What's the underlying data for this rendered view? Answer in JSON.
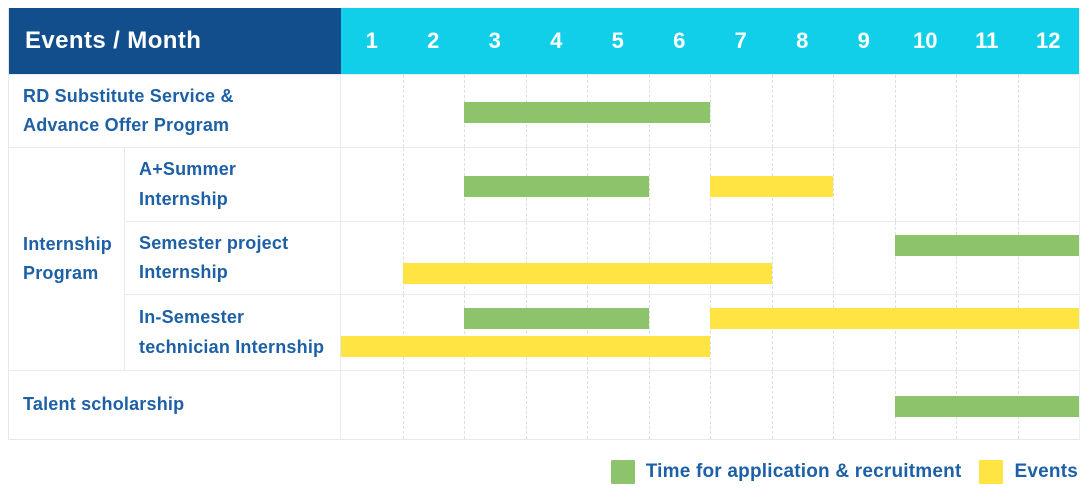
{
  "header": {
    "title": "Events / Month"
  },
  "colors": {
    "header_navy": "#114E8B",
    "header_cyan": "#12CFE9",
    "label_text_blue": "#1D60A6",
    "application": "#8CC36B",
    "event": "#FFE444"
  },
  "chart_data": {
    "type": "gantt",
    "title": "Events / Month",
    "axis": "months of year, 1 through 12",
    "months": [
      "1",
      "2",
      "3",
      "4",
      "5",
      "6",
      "7",
      "8",
      "9",
      "10",
      "11",
      "12"
    ],
    "grid": "dashed vertical month separators, solid row separators",
    "colors": {
      "application": "#8CC36B",
      "event": "#FFE444"
    },
    "bar_unit_note": "start/end are month-axis units 0-12; start 2 = beginning of month 3",
    "rows": [
      {
        "label": "RD Substitute Service &\nAdvance Offer Program",
        "bars": [
          {
            "type": "application",
            "start": 2,
            "end": 6,
            "months_covered": "3-6",
            "lane": "center"
          }
        ]
      },
      {
        "group": "Internship\nProgram",
        "label": "A+Summer\nInternship",
        "bars": [
          {
            "type": "application",
            "start": 2,
            "end": 5,
            "months_covered": "3-5",
            "lane": "center"
          },
          {
            "type": "event",
            "start": 6,
            "end": 8,
            "months_covered": "7-8",
            "lane": "center"
          }
        ]
      },
      {
        "group": "Internship\nProgram",
        "label": "Semester project\nInternship",
        "bars": [
          {
            "type": "application",
            "start": 9,
            "end": 12,
            "months_covered": "10-12",
            "lane": "top"
          },
          {
            "type": "event",
            "start": 1,
            "end": 7,
            "months_covered": "2-7",
            "lane": "bottom"
          }
        ]
      },
      {
        "group": "Internship\nProgram",
        "label": "In-Semester\ntechnician Internship",
        "bars": [
          {
            "type": "application",
            "start": 2,
            "end": 5,
            "months_covered": "3-5",
            "lane": "top"
          },
          {
            "type": "event",
            "start": 6,
            "end": 12,
            "months_covered": "7-12",
            "lane": "top"
          },
          {
            "type": "event",
            "start": 0,
            "end": 6,
            "months_covered": "1-6",
            "lane": "bottom"
          }
        ]
      },
      {
        "label": "Talent scholarship",
        "bars": [
          {
            "type": "application",
            "start": 9,
            "end": 12,
            "months_covered": "10-12",
            "lane": "center"
          }
        ]
      }
    ],
    "legend": [
      {
        "type": "application",
        "label": "Time for application & recruitment",
        "color": "#8CC36B"
      },
      {
        "type": "event",
        "label": "Events",
        "color": "#FFE444"
      }
    ]
  }
}
